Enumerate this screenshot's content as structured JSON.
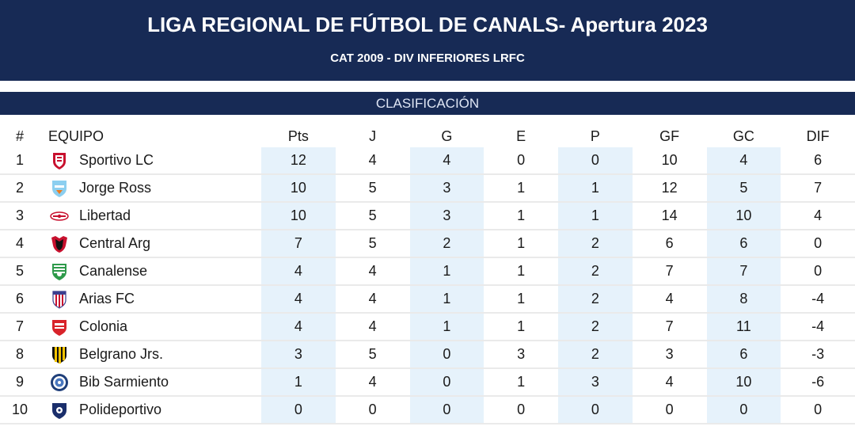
{
  "header": {
    "title": "LIGA REGIONAL DE FÚTBOL DE CANALS- Apertura 2023",
    "subtitle": "CAT 2009 - DIV INFERIORES LRFC"
  },
  "section": {
    "label": "CLASIFICACIÓN"
  },
  "table": {
    "columns": [
      "#",
      "EQUIPO",
      "Pts",
      "J",
      "G",
      "E",
      "P",
      "GF",
      "GC",
      "DIF"
    ],
    "rows": [
      {
        "pos": "1",
        "team": "Sportivo LC",
        "crest": "sportivo-lc-crest",
        "pts": "12",
        "j": "4",
        "g": "4",
        "e": "0",
        "p": "0",
        "gf": "10",
        "gc": "4",
        "dif": "6"
      },
      {
        "pos": "2",
        "team": "Jorge Ross",
        "crest": "jorge-ross-crest",
        "pts": "10",
        "j": "5",
        "g": "3",
        "e": "1",
        "p": "1",
        "gf": "12",
        "gc": "5",
        "dif": "7"
      },
      {
        "pos": "3",
        "team": "Libertad",
        "crest": "libertad-crest",
        "pts": "10",
        "j": "5",
        "g": "3",
        "e": "1",
        "p": "1",
        "gf": "14",
        "gc": "10",
        "dif": "4"
      },
      {
        "pos": "4",
        "team": "Central Arg",
        "crest": "central-arg-crest",
        "pts": "7",
        "j": "5",
        "g": "2",
        "e": "1",
        "p": "2",
        "gf": "6",
        "gc": "6",
        "dif": "0"
      },
      {
        "pos": "5",
        "team": "Canalense",
        "crest": "canalense-crest",
        "pts": "4",
        "j": "4",
        "g": "1",
        "e": "1",
        "p": "2",
        "gf": "7",
        "gc": "7",
        "dif": "0"
      },
      {
        "pos": "6",
        "team": "Arias FC",
        "crest": "arias-fc-crest",
        "pts": "4",
        "j": "4",
        "g": "1",
        "e": "1",
        "p": "2",
        "gf": "4",
        "gc": "8",
        "dif": "-4"
      },
      {
        "pos": "7",
        "team": "Colonia",
        "crest": "colonia-crest",
        "pts": "4",
        "j": "4",
        "g": "1",
        "e": "1",
        "p": "2",
        "gf": "7",
        "gc": "11",
        "dif": "-4"
      },
      {
        "pos": "8",
        "team": "Belgrano Jrs.",
        "crest": "belgrano-jrs-crest",
        "pts": "3",
        "j": "5",
        "g": "0",
        "e": "3",
        "p": "2",
        "gf": "3",
        "gc": "6",
        "dif": "-3"
      },
      {
        "pos": "9",
        "team": "Bib Sarmiento",
        "crest": "bib-sarmiento-crest",
        "pts": "1",
        "j": "4",
        "g": "0",
        "e": "1",
        "p": "3",
        "gf": "4",
        "gc": "10",
        "dif": "-6"
      },
      {
        "pos": "10",
        "team": "Polideportivo",
        "crest": "polideportivo-crest",
        "pts": "0",
        "j": "0",
        "g": "0",
        "e": "0",
        "p": "0",
        "gf": "0",
        "gc": "0",
        "dif": "0"
      }
    ]
  },
  "colors": {
    "header_bg": "#172a55",
    "shade": "#e6f2fb",
    "row_border": "#eaeaea"
  }
}
